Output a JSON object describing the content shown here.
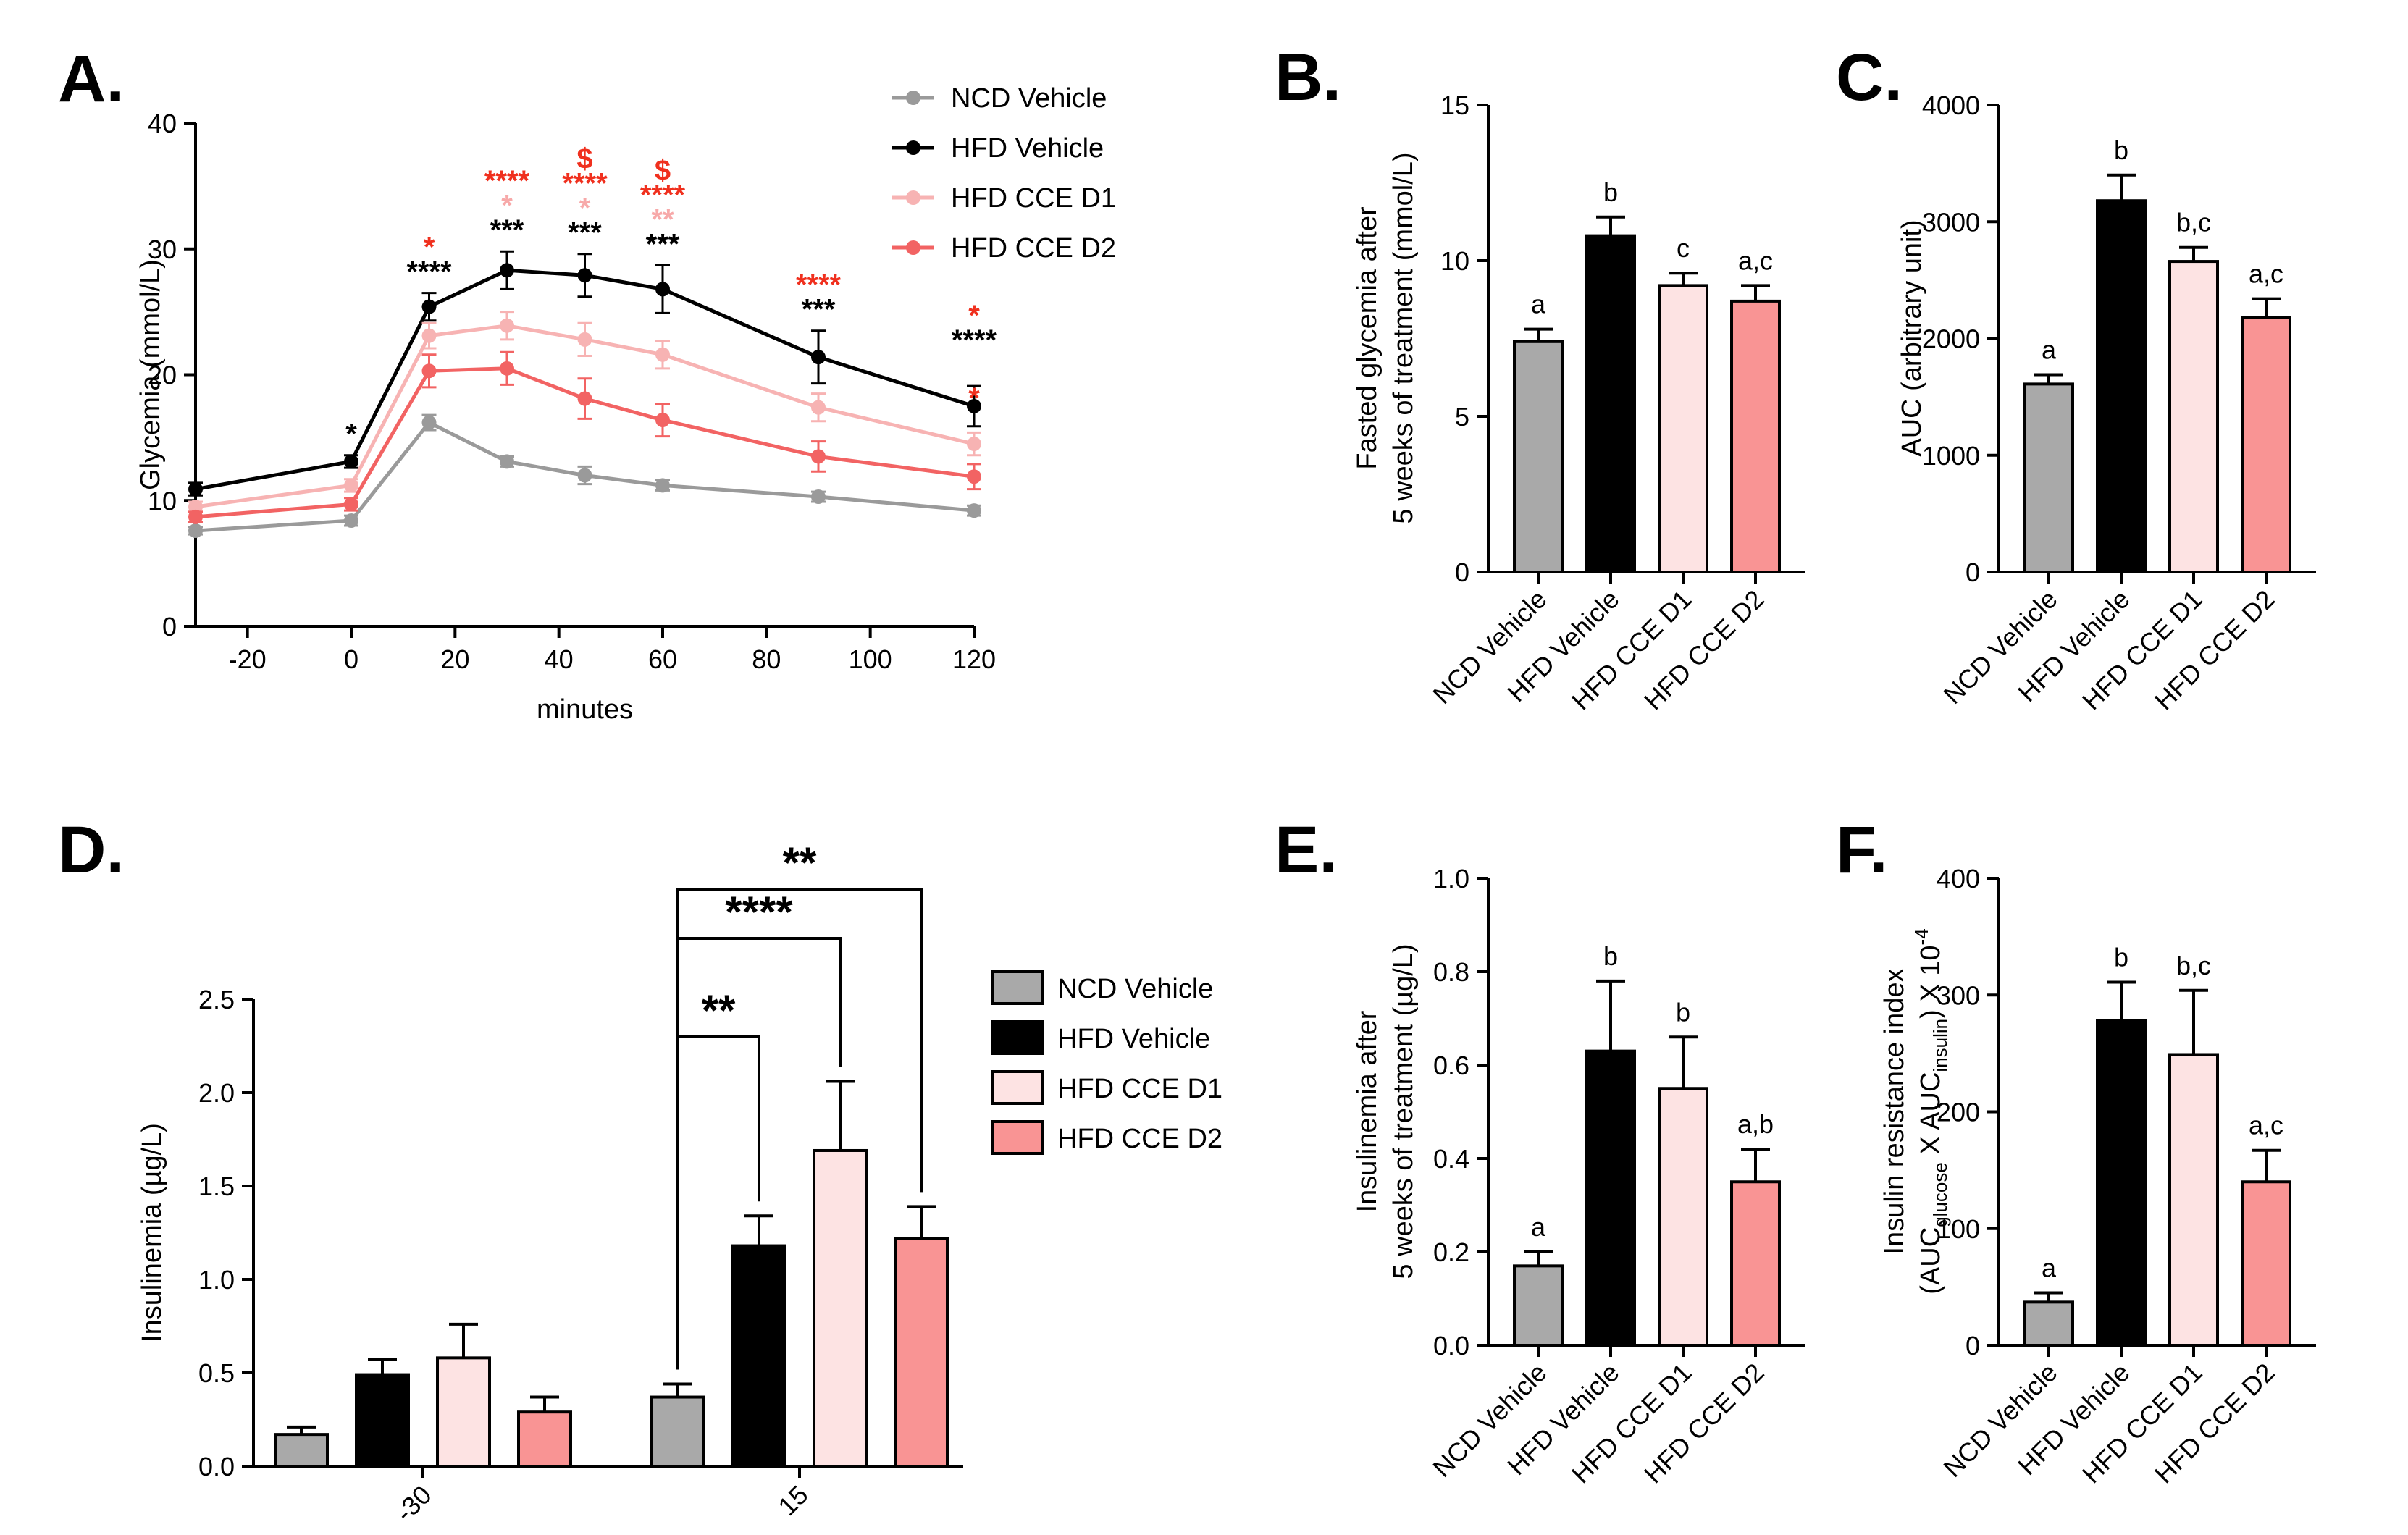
{
  "colors": {
    "NCD Vehicle": {
      "fill": "#a9a9a9",
      "line": "#9a9a9a"
    },
    "HFD Vehicle": {
      "fill": "#000000",
      "line": "#000000"
    },
    "HFD CCE D1": {
      "fill": "#fde3e3",
      "line": "#f7b3b3"
    },
    "HFD CCE D2": {
      "fill": "#f99494",
      "line": "#f26363"
    },
    "red_star": "#f0301e",
    "pink_star": "#f7a9a9",
    "black_star": "#000000"
  },
  "chart_data": [
    {
      "id": "A",
      "panel_label": "A.",
      "type": "line",
      "xlabel": "minutes",
      "ylabel": "Glycemia (mmol/L)",
      "xlim": [
        -30,
        120
      ],
      "ylim": [
        0,
        40
      ],
      "xticks": [
        -20,
        0,
        20,
        40,
        60,
        80,
        100,
        120
      ],
      "yticks": [
        0,
        10,
        20,
        30,
        40
      ],
      "x": [
        -30,
        0,
        15,
        30,
        45,
        60,
        90,
        120
      ],
      "series": [
        {
          "name": "NCD Vehicle",
          "values": [
            7.6,
            8.4,
            16.2,
            13.1,
            12.0,
            11.2,
            10.3,
            9.2
          ],
          "errors": [
            0.3,
            0.4,
            0.6,
            0.4,
            0.7,
            0.4,
            0.4,
            0.4
          ]
        },
        {
          "name": "HFD Vehicle",
          "values": [
            10.9,
            13.1,
            25.4,
            28.3,
            27.9,
            26.8,
            21.4,
            17.5
          ],
          "errors": [
            0.5,
            0.5,
            1.1,
            1.5,
            1.7,
            1.9,
            2.1,
            1.6
          ]
        },
        {
          "name": "HFD CCE D1",
          "values": [
            9.5,
            11.2,
            23.1,
            23.9,
            22.8,
            21.6,
            17.4,
            14.5
          ],
          "errors": [
            0.4,
            0.5,
            1.0,
            1.1,
            1.3,
            1.1,
            1.1,
            0.9
          ]
        },
        {
          "name": "HFD CCE D2",
          "values": [
            8.7,
            9.7,
            20.3,
            20.5,
            18.1,
            16.4,
            13.5,
            11.9
          ],
          "errors": [
            0.4,
            0.5,
            1.3,
            1.3,
            1.6,
            1.3,
            1.2,
            1.0
          ]
        }
      ],
      "annotations": [
        {
          "x": 0,
          "lines": [
            {
              "text": "*",
              "color": "black"
            }
          ]
        },
        {
          "x": 15,
          "lines": [
            {
              "text": "*",
              "color": "red"
            },
            {
              "text": "****",
              "color": "black"
            }
          ]
        },
        {
          "x": 30,
          "lines": [
            {
              "text": "****",
              "color": "red"
            },
            {
              "text": "*",
              "color": "pink"
            },
            {
              "text": "***",
              "color": "black"
            }
          ]
        },
        {
          "x": 45,
          "lines": [
            {
              "text": "$",
              "color": "red"
            },
            {
              "text": "****",
              "color": "red"
            },
            {
              "text": "*",
              "color": "pink"
            },
            {
              "text": "***",
              "color": "black"
            }
          ]
        },
        {
          "x": 60,
          "lines": [
            {
              "text": "$",
              "color": "red"
            },
            {
              "text": "****",
              "color": "red"
            },
            {
              "text": "**",
              "color": "pink"
            },
            {
              "text": "***",
              "color": "black"
            }
          ]
        },
        {
          "x": 90,
          "lines": [
            {
              "text": "****",
              "color": "red"
            },
            {
              "text": "***",
              "color": "black"
            }
          ]
        },
        {
          "x": 120,
          "lines": [
            {
              "text": "*",
              "color": "red"
            },
            {
              "text": "****",
              "color": "black"
            },
            {
              "text": "*",
              "color": "red"
            }
          ]
        }
      ],
      "legend": [
        "NCD Vehicle",
        "HFD Vehicle",
        "HFD CCE D1",
        "HFD CCE D2"
      ],
      "legend_position": "top-right"
    },
    {
      "id": "B",
      "panel_label": "B.",
      "type": "bar",
      "ylabel_lines": [
        "Fasted glycemia after",
        "5 weeks of treatment (mmol/L)"
      ],
      "ylim": [
        0,
        15
      ],
      "yticks": [
        0,
        5,
        10,
        15
      ],
      "categories": [
        "NCD Vehicle",
        "HFD Vehicle",
        "HFD CCE D1",
        "HFD CCE D2"
      ],
      "values": [
        7.4,
        10.8,
        9.2,
        8.7
      ],
      "errors": [
        0.4,
        0.6,
        0.4,
        0.5
      ],
      "letters": [
        "a",
        "b",
        "c",
        "a,c"
      ]
    },
    {
      "id": "C",
      "panel_label": "C.",
      "type": "bar",
      "ylabel_lines": [
        "AUC (arbitrary unit)"
      ],
      "ylim": [
        0,
        4000
      ],
      "yticks": [
        0,
        1000,
        2000,
        3000,
        4000
      ],
      "categories": [
        "NCD Vehicle",
        "HFD Vehicle",
        "HFD CCE D1",
        "HFD CCE D2"
      ],
      "values": [
        1610,
        3180,
        2660,
        2180
      ],
      "errors": [
        80,
        220,
        120,
        160
      ],
      "letters": [
        "a",
        "b",
        "b,c",
        "a,c"
      ]
    },
    {
      "id": "D",
      "panel_label": "D.",
      "type": "bar",
      "ylabel": "Insulinemia (µg/L)",
      "ylim": [
        0,
        2.5
      ],
      "yticks": [
        "0.0",
        "0.5",
        "1.0",
        "1.5",
        "2.0",
        "2.5"
      ],
      "categories": [
        "-30",
        "15"
      ],
      "series": [
        {
          "name": "NCD Vehicle",
          "values": [
            0.17,
            0.37
          ],
          "errors": [
            0.04,
            0.07
          ]
        },
        {
          "name": "HFD Vehicle",
          "values": [
            0.49,
            1.18
          ],
          "errors": [
            0.08,
            0.16
          ]
        },
        {
          "name": "HFD CCE D1",
          "values": [
            0.58,
            1.69
          ],
          "errors": [
            0.18,
            0.37
          ]
        },
        {
          "name": "HFD CCE D2",
          "values": [
            0.29,
            1.22
          ],
          "errors": [
            0.08,
            0.17
          ]
        }
      ],
      "brackets": [
        {
          "from": 0,
          "to": 1,
          "label": "**"
        },
        {
          "from": 0,
          "to": 2,
          "label": "****"
        },
        {
          "from": 0,
          "to": 3,
          "label": "**"
        }
      ],
      "legend": [
        "NCD Vehicle",
        "HFD Vehicle",
        "HFD CCE D1",
        "HFD CCE D2"
      ],
      "legend_position": "right"
    },
    {
      "id": "E",
      "panel_label": "E.",
      "type": "bar",
      "ylabel_lines": [
        "Insulinemia after",
        "5 weeks of treatment (µg/L)"
      ],
      "ylim": [
        0,
        1.0
      ],
      "yticks": [
        "0.0",
        "0.2",
        "0.4",
        "0.6",
        "0.8",
        "1.0"
      ],
      "categories": [
        "NCD Vehicle",
        "HFD Vehicle",
        "HFD CCE D1",
        "HFD CCE D2"
      ],
      "values": [
        0.17,
        0.63,
        0.55,
        0.35
      ],
      "errors": [
        0.03,
        0.15,
        0.11,
        0.07
      ],
      "letters": [
        "a",
        "b",
        "b",
        "a,b"
      ]
    },
    {
      "id": "F",
      "panel_label": "F.",
      "type": "bar",
      "ylabel_line1": "Insulin resistance index",
      "ylabel_parts": [
        "(AUC",
        "glucose",
        " X AUC",
        "insulin",
        ") X 10",
        "-4"
      ],
      "ylim": [
        0,
        400
      ],
      "yticks": [
        0,
        100,
        200,
        300,
        400
      ],
      "categories": [
        "NCD Vehicle",
        "HFD Vehicle",
        "HFD CCE D1",
        "HFD CCE D2"
      ],
      "values": [
        37,
        278,
        249,
        140
      ],
      "errors": [
        8,
        33,
        55,
        27
      ],
      "letters": [
        "a",
        "b",
        "b,c",
        "a,c"
      ]
    }
  ]
}
